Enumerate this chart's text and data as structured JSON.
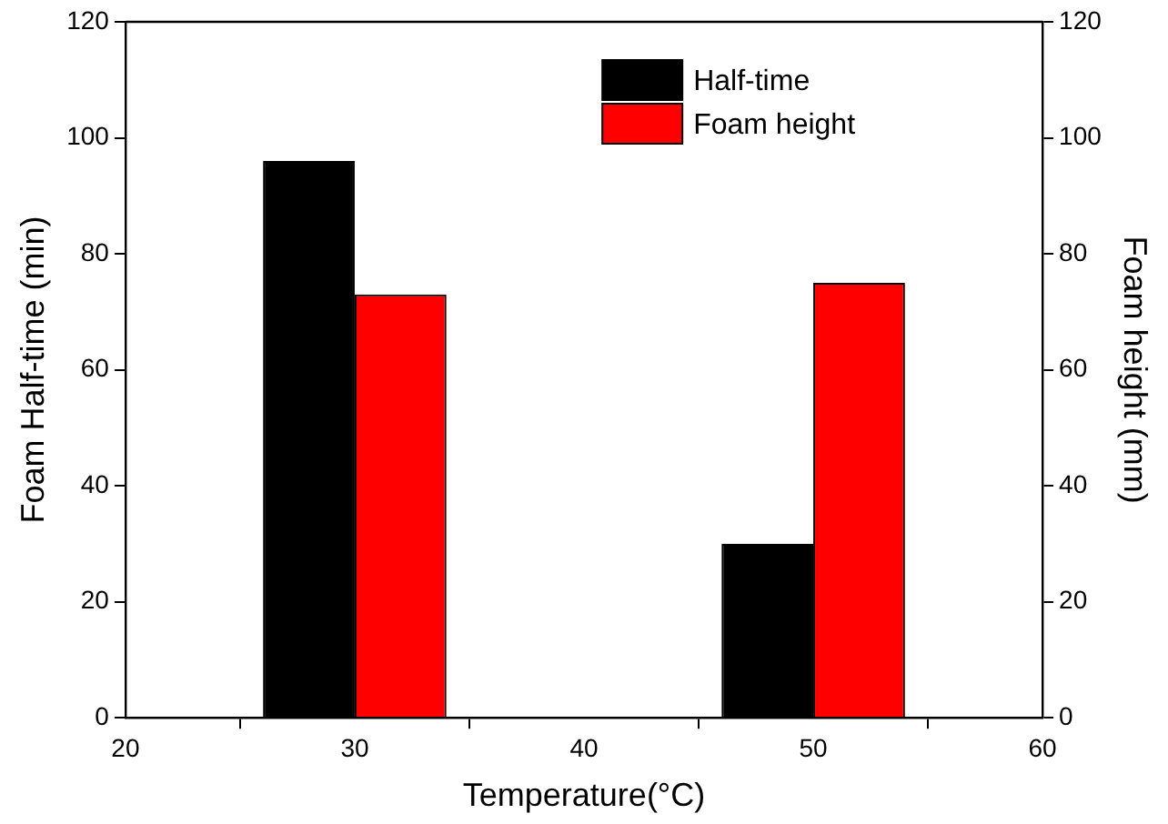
{
  "chart_data": {
    "type": "bar",
    "x": [
      30,
      50
    ],
    "xlabel": "Temperature(°C)",
    "ylabel": "Foam Half-time (min)",
    "y2label": "Foam height (mm)",
    "series": [
      {
        "name": "Half-time",
        "color": "#000000",
        "values": [
          96,
          30
        ]
      },
      {
        "name": "Foam height",
        "color": "#ff0000",
        "values": [
          73,
          75
        ],
        "axis": "y2"
      }
    ],
    "xlim": [
      20,
      60
    ],
    "xticks": [
      20,
      30,
      40,
      50,
      60
    ],
    "ylim": [
      0,
      120
    ],
    "yticks": [
      0,
      20,
      40,
      60,
      80,
      100,
      120
    ],
    "y2lim": [
      0,
      120
    ],
    "y2ticks": [
      0,
      20,
      40,
      60,
      80,
      100,
      120
    ],
    "grid": false,
    "legend": "top right"
  }
}
